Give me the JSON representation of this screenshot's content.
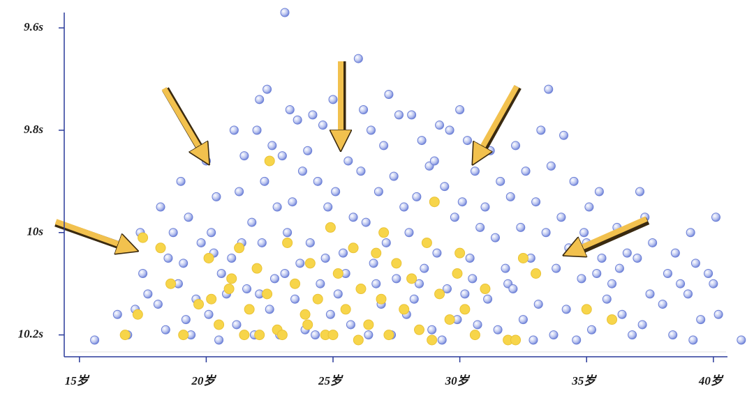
{
  "chart_data": {
    "type": "scatter",
    "xlim": [
      14.4,
      40.5
    ],
    "ylim": [
      10.24,
      9.57
    ],
    "xticks": [
      {
        "value": 15,
        "label": "15岁"
      },
      {
        "value": 20,
        "label": "20岁"
      },
      {
        "value": 25,
        "label": "25岁"
      },
      {
        "value": 30,
        "label": "30岁"
      },
      {
        "value": 35,
        "label": "35岁"
      },
      {
        "value": 40,
        "label": "40岁"
      }
    ],
    "yticks": [
      {
        "value": 9.6,
        "label": "9.6s"
      },
      {
        "value": 9.8,
        "label": "9.8s"
      },
      {
        "value": 10,
        "label": "10s"
      },
      {
        "value": 10.2,
        "label": "10.2s"
      }
    ],
    "series": [
      {
        "color": "#6b7fd6",
        "x": [
          17.4,
          17.2,
          17.5,
          16.9,
          17.7,
          18.2,
          18.5,
          18.1,
          18.7,
          18.4,
          18.9,
          19.0,
          19.3,
          19.1,
          19.6,
          19.4,
          19.8,
          19.2,
          20.0,
          20.4,
          20.2,
          20.6,
          20.1,
          20.8,
          20.5,
          20.3,
          21.1,
          21.5,
          21.3,
          21.8,
          21.0,
          21.6,
          21.2,
          21.9,
          21.4,
          22.1,
          22.4,
          22.0,
          22.6,
          22.3,
          22.8,
          22.2,
          22.7,
          22.5,
          22.9,
          22.1,
          23.1,
          23.3,
          23.6,
          23.0,
          23.8,
          23.4,
          23.2,
          23.7,
          23.5,
          23.9,
          23.1,
          24.2,
          24.6,
          24.0,
          24.4,
          24.8,
          24.1,
          24.5,
          24.9,
          24.3,
          24.7,
          25.0,
          25.3,
          25.6,
          25.1,
          25.8,
          25.4,
          25.2,
          25.7,
          25.5,
          26.0,
          26.2,
          26.5,
          26.1,
          26.8,
          26.3,
          26.6,
          26.9,
          26.4,
          26.7,
          27.2,
          27.6,
          27.0,
          27.4,
          27.8,
          27.1,
          27.5,
          27.9,
          27.3,
          28.1,
          28.5,
          28.8,
          28.3,
          28.0,
          28.6,
          28.2,
          28.9,
          28.4,
          29.2,
          29.6,
          29.0,
          29.4,
          29.8,
          29.1,
          29.5,
          29.9,
          29.3,
          30.0,
          30.3,
          30.6,
          30.1,
          30.8,
          30.4,
          30.2,
          30.7,
          30.5,
          31.2,
          31.6,
          31.0,
          31.4,
          31.8,
          31.1,
          31.5,
          31.9,
          32.2,
          32.6,
          32.0,
          32.4,
          32.8,
          32.1,
          32.5,
          32.9,
          33.5,
          33.2,
          33.6,
          33.0,
          33.4,
          33.8,
          33.1,
          33.7,
          34.1,
          34.5,
          34.0,
          34.3,
          34.8,
          34.2,
          34.6,
          34.9,
          35.1,
          35.5,
          35.0,
          35.4,
          35.8,
          35.2,
          35.6,
          36.2,
          36.6,
          36.0,
          36.4,
          36.8,
          36.3,
          37.1,
          37.3,
          37.0,
          37.5,
          37.2,
          37.6,
          38.2,
          38.5,
          38.0,
          38.4,
          38.7,
          39.1,
          39.3,
          39.0,
          39.5,
          39.2,
          40.1,
          40.0,
          40.2,
          39.8,
          41.1,
          15.6,
          16.5
        ],
        "values": [
          10.0,
          10.15,
          10.08,
          10.2,
          10.12,
          9.95,
          10.05,
          10.14,
          10.0,
          10.19,
          10.1,
          9.9,
          9.97,
          10.06,
          10.13,
          10.2,
          10.02,
          10.17,
          9.86,
          9.93,
          10.0,
          10.08,
          10.16,
          10.12,
          10.21,
          10.04,
          9.8,
          9.85,
          9.92,
          9.98,
          10.05,
          10.11,
          10.18,
          10.2,
          10.02,
          9.74,
          9.72,
          9.8,
          9.83,
          9.9,
          9.95,
          10.02,
          10.09,
          10.15,
          10.2,
          10.12,
          9.57,
          9.76,
          9.78,
          9.85,
          9.88,
          9.94,
          10.0,
          10.06,
          10.13,
          10.19,
          10.08,
          9.77,
          9.79,
          9.84,
          9.9,
          9.95,
          10.02,
          10.1,
          10.16,
          10.2,
          10.05,
          9.74,
          9.81,
          9.86,
          9.92,
          9.97,
          10.04,
          10.12,
          10.18,
          10.08,
          9.66,
          9.76,
          9.8,
          9.88,
          9.92,
          9.98,
          10.06,
          10.14,
          10.2,
          10.1,
          9.73,
          9.77,
          9.83,
          9.89,
          9.95,
          10.02,
          10.09,
          10.16,
          10.2,
          9.77,
          9.82,
          9.87,
          9.93,
          10.0,
          10.07,
          10.13,
          10.19,
          10.1,
          9.79,
          9.8,
          9.86,
          9.91,
          9.97,
          10.04,
          10.11,
          10.17,
          10.21,
          9.76,
          9.82,
          9.88,
          9.94,
          9.99,
          10.05,
          10.12,
          10.18,
          10.09,
          9.84,
          9.9,
          9.95,
          10.01,
          10.07,
          10.13,
          10.19,
          10.1,
          9.83,
          9.88,
          9.93,
          9.99,
          10.05,
          10.11,
          10.17,
          10.21,
          9.72,
          9.8,
          9.87,
          9.94,
          10.0,
          10.07,
          10.14,
          10.2,
          9.81,
          9.9,
          9.97,
          10.03,
          10.09,
          10.15,
          10.21,
          10.0,
          9.95,
          9.92,
          10.02,
          10.08,
          10.13,
          10.19,
          10.05,
          9.99,
          10.04,
          10.1,
          10.16,
          10.2,
          10.07,
          9.92,
          9.97,
          10.05,
          10.12,
          10.18,
          10.02,
          10.08,
          10.04,
          10.14,
          10.2,
          10.1,
          10.0,
          10.06,
          10.12,
          10.17,
          10.21,
          9.97,
          10.1,
          10.16,
          10.08,
          10.21,
          10.21,
          10.16
        ]
      },
      {
        "color": "#f7d54a",
        "x": [
          17.5,
          16.8,
          17.3,
          18.2,
          18.6,
          19.1,
          19.7,
          20.1,
          20.5,
          20.9,
          21.3,
          21.7,
          21.5,
          22.0,
          22.5,
          22.4,
          22.8,
          23.2,
          23.5,
          23.9,
          24.1,
          24.4,
          24.7,
          24.9,
          25.2,
          25.5,
          25.8,
          26.1,
          26.4,
          26.7,
          26.9,
          27.2,
          27.5,
          27.8,
          28.1,
          28.4,
          28.7,
          29.0,
          29.2,
          29.6,
          29.9,
          30.2,
          30.6,
          31.0,
          31.9,
          32.2,
          32.5,
          33.0,
          35.0,
          36.0,
          25.0,
          23.0,
          21.0,
          27.0,
          26.0,
          28.9,
          24.0,
          22.1,
          20.2,
          30.0
        ],
        "values": [
          10.01,
          10.2,
          10.16,
          10.03,
          10.1,
          10.2,
          10.14,
          10.05,
          10.18,
          10.11,
          10.03,
          10.15,
          10.2,
          10.07,
          9.86,
          10.12,
          10.19,
          10.02,
          10.1,
          10.16,
          10.06,
          10.13,
          10.2,
          9.99,
          10.08,
          10.15,
          10.03,
          10.11,
          10.18,
          10.04,
          10.13,
          10.2,
          10.06,
          10.15,
          10.09,
          10.19,
          10.02,
          9.94,
          10.12,
          10.17,
          10.08,
          10.15,
          10.2,
          10.11,
          10.21,
          10.21,
          10.05,
          10.08,
          10.15,
          10.17,
          10.2,
          10.2,
          10.09,
          10.0,
          10.21,
          10.21,
          10.18,
          10.2,
          10.13,
          10.04
        ]
      }
    ]
  }
}
